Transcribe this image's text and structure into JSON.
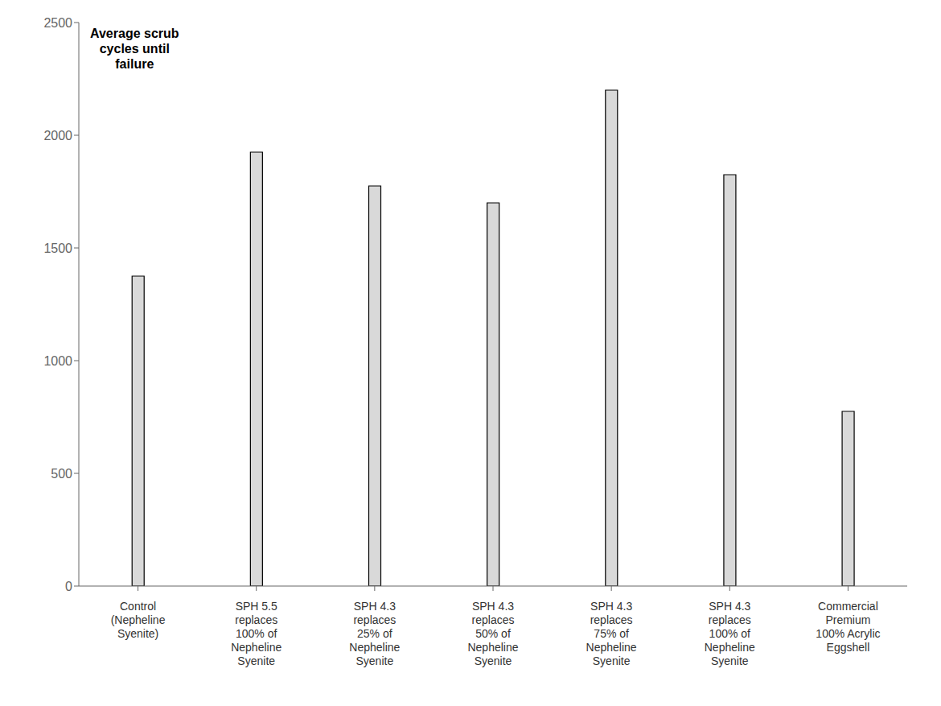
{
  "chart_data": {
    "type": "bar",
    "categories": [
      "Control\n(Nepheline\nSyenite)",
      "SPH 5.5\nreplaces\n100% of\nNepheline\nSyenite",
      "SPH 4.3\nreplaces\n25% of\nNepheline\nSyenite",
      "SPH 4.3\nreplaces\n50% of\nNepheline\nSyenite",
      "SPH 4.3\nreplaces\n75% of\nNepheline\nSyenite",
      "SPH 4.3\nreplaces\n100% of\nNepheline\nSyenite",
      "Commercial\nPremium\n100% Acrylic\nEggshell"
    ],
    "values": [
      1375,
      1925,
      1775,
      1700,
      2200,
      1825,
      775
    ],
    "color": "#d9d9d9",
    "annotations": [
      "Average scrub\ncycles until\nfailure"
    ],
    "ylim": [
      0,
      2500
    ],
    "yticks": [
      0,
      500,
      1000,
      1500,
      2000,
      2500
    ],
    "grid": false
  }
}
